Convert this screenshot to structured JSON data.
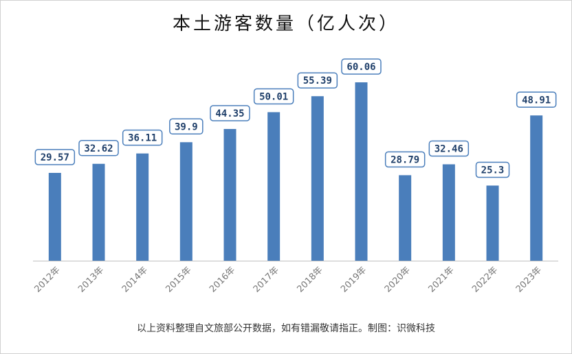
{
  "chart_data": {
    "type": "bar",
    "title": "本土游客数量（亿人次）",
    "categories": [
      "2012年",
      "2013年",
      "2014年",
      "2015年",
      "2016年",
      "2017年",
      "2018年",
      "2019年",
      "2020年",
      "2021年",
      "2022年",
      "2023年"
    ],
    "values": [
      29.57,
      32.62,
      36.11,
      39.9,
      44.35,
      50.01,
      55.39,
      60.06,
      28.79,
      32.46,
      25.3,
      48.91
    ],
    "value_labels": [
      "29.57",
      "32.62",
      "36.11",
      "39.9",
      "44.35",
      "50.01",
      "55.39",
      "60.06",
      "28.79",
      "32.46",
      "25.3",
      "48.91"
    ],
    "ylim": [
      0,
      60.06
    ],
    "grid": false,
    "legend": "none",
    "colors": {
      "bar": "#4a7ebb",
      "label_border": "#4a7ebb",
      "label_text": "#1f3f6a",
      "axis": "#bfbfbf",
      "tick_text": "#777777"
    }
  },
  "footer": {
    "source": "以上资料整理自文旅部公开数据，如有错漏敬请指正。制图：识微科技"
  }
}
